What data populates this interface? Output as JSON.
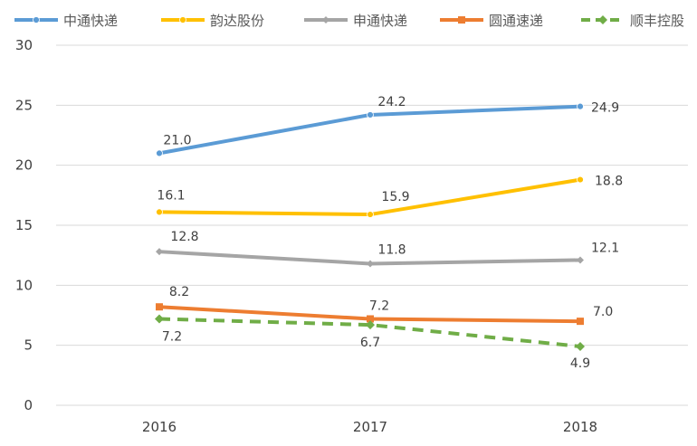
{
  "chart_data": {
    "type": "line",
    "categories": [
      "2016",
      "2017",
      "2018"
    ],
    "ylim": [
      0,
      30
    ],
    "yticks": [
      0,
      5,
      10,
      15,
      20,
      25,
      30
    ],
    "grid": true,
    "legend_position": "top",
    "series": [
      {
        "name": "中通快递",
        "values": [
          21.0,
          24.2,
          24.9
        ],
        "labels": [
          "21.0",
          "24.2",
          "24.9"
        ],
        "color": "#5B9BD5",
        "marker": "circle",
        "dashed": false
      },
      {
        "name": "韵达股份",
        "values": [
          16.1,
          15.9,
          18.8
        ],
        "labels": [
          "16.1",
          "15.9",
          "18.8"
        ],
        "color": "#FFC000",
        "marker": "circle",
        "dashed": false
      },
      {
        "name": "申通快递",
        "values": [
          12.8,
          11.8,
          12.1
        ],
        "labels": [
          "12.8",
          "11.8",
          "12.1"
        ],
        "color": "#A5A5A5",
        "marker": "diamond",
        "dashed": false
      },
      {
        "name": "圆通速递",
        "values": [
          8.2,
          7.2,
          7.0
        ],
        "labels": [
          "8.2",
          "7.2",
          "7.0"
        ],
        "color": "#ED7D31",
        "marker": "square",
        "dashed": false
      },
      {
        "name": "顺丰控股",
        "values": [
          7.2,
          6.7,
          4.9
        ],
        "labels": [
          "7.2",
          "6.7",
          "4.9"
        ],
        "color": "#70AD47",
        "marker": "diamond",
        "dashed": true
      }
    ]
  }
}
